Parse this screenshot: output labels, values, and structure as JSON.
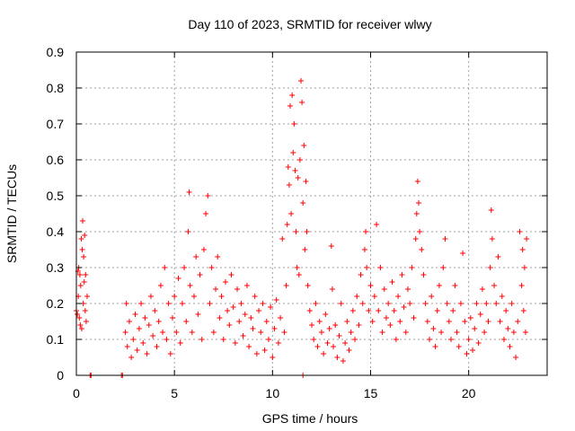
{
  "chart_data": {
    "type": "scatter",
    "title": "Day 110 of 2023, SRMTID for receiver wlwy",
    "xlabel": "GPS time / hours",
    "ylabel": "SRMTID / TECUs",
    "xlim": [
      0,
      24
    ],
    "ylim": [
      0,
      0.9
    ],
    "xticks": [
      0,
      5,
      10,
      15,
      20
    ],
    "yticks": [
      0,
      0.1,
      0.2,
      0.3,
      0.4,
      0.5,
      0.6,
      0.7,
      0.8,
      0.9
    ],
    "grid": true,
    "marker": "+",
    "colors": {
      "series": "#ff0000",
      "grid": "#a0a0a0",
      "axis": "#000000"
    },
    "series": [
      {
        "name": "SRMTID",
        "points": [
          [
            0.0,
            0.18
          ],
          [
            0.05,
            0.17
          ],
          [
            0.08,
            0.29
          ],
          [
            0.1,
            0.22
          ],
          [
            0.12,
            0.3
          ],
          [
            0.15,
            0.16
          ],
          [
            0.18,
            0.28
          ],
          [
            0.2,
            0.14
          ],
          [
            0.22,
            0.25
          ],
          [
            0.25,
            0.38
          ],
          [
            0.27,
            0.13
          ],
          [
            0.3,
            0.35
          ],
          [
            0.32,
            0.43
          ],
          [
            0.35,
            0.2
          ],
          [
            0.37,
            0.33
          ],
          [
            0.4,
            0.26
          ],
          [
            0.42,
            0.39
          ],
          [
            0.45,
            0.18
          ],
          [
            0.47,
            0.28
          ],
          [
            0.5,
            0.15
          ],
          [
            0.55,
            0.22
          ],
          [
            0.7,
            0.0
          ],
          [
            0.75,
            0.0
          ],
          [
            2.3,
            0.0
          ],
          [
            2.35,
            0.0
          ],
          [
            11.55,
            0.0
          ],
          [
            2.5,
            0.12
          ],
          [
            2.55,
            0.2
          ],
          [
            2.6,
            0.08
          ],
          [
            2.7,
            0.15
          ],
          [
            2.8,
            0.05
          ],
          [
            2.9,
            0.1
          ],
          [
            3.0,
            0.17
          ],
          [
            3.1,
            0.07
          ],
          [
            3.2,
            0.13
          ],
          [
            3.3,
            0.2
          ],
          [
            3.4,
            0.09
          ],
          [
            3.5,
            0.16
          ],
          [
            3.6,
            0.06
          ],
          [
            3.7,
            0.14
          ],
          [
            3.8,
            0.22
          ],
          [
            3.9,
            0.11
          ],
          [
            4.0,
            0.18
          ],
          [
            4.1,
            0.08
          ],
          [
            4.2,
            0.15
          ],
          [
            4.3,
            0.25
          ],
          [
            4.4,
            0.12
          ],
          [
            4.5,
            0.3
          ],
          [
            4.6,
            0.1
          ],
          [
            4.7,
            0.2
          ],
          [
            4.8,
            0.06
          ],
          [
            4.9,
            0.16
          ],
          [
            5.0,
            0.22
          ],
          [
            5.1,
            0.12
          ],
          [
            5.2,
            0.27
          ],
          [
            5.3,
            0.09
          ],
          [
            5.4,
            0.2
          ],
          [
            5.5,
            0.3
          ],
          [
            5.6,
            0.15
          ],
          [
            5.7,
            0.4
          ],
          [
            5.75,
            0.51
          ],
          [
            5.8,
            0.25
          ],
          [
            5.9,
            0.12
          ],
          [
            6.0,
            0.22
          ],
          [
            6.1,
            0.33
          ],
          [
            6.2,
            0.17
          ],
          [
            6.3,
            0.28
          ],
          [
            6.4,
            0.1
          ],
          [
            6.5,
            0.35
          ],
          [
            6.6,
            0.45
          ],
          [
            6.7,
            0.5
          ],
          [
            6.8,
            0.2
          ],
          [
            6.9,
            0.3
          ],
          [
            7.0,
            0.12
          ],
          [
            7.1,
            0.24
          ],
          [
            7.2,
            0.33
          ],
          [
            7.3,
            0.16
          ],
          [
            7.4,
            0.22
          ],
          [
            7.5,
            0.1
          ],
          [
            7.6,
            0.26
          ],
          [
            7.7,
            0.18
          ],
          [
            7.8,
            0.14
          ],
          [
            7.9,
            0.28
          ],
          [
            8.0,
            0.19
          ],
          [
            8.1,
            0.09
          ],
          [
            8.2,
            0.24
          ],
          [
            8.3,
            0.15
          ],
          [
            8.4,
            0.2
          ],
          [
            8.5,
            0.11
          ],
          [
            8.6,
            0.17
          ],
          [
            8.7,
            0.25
          ],
          [
            8.8,
            0.08
          ],
          [
            8.9,
            0.16
          ],
          [
            9.0,
            0.13
          ],
          [
            9.1,
            0.22
          ],
          [
            9.2,
            0.06
          ],
          [
            9.3,
            0.18
          ],
          [
            9.4,
            0.12
          ],
          [
            9.5,
            0.2
          ],
          [
            9.6,
            0.07
          ],
          [
            9.7,
            0.15
          ],
          [
            9.8,
            0.1
          ],
          [
            9.9,
            0.19
          ],
          [
            10.0,
            0.05
          ],
          [
            10.1,
            0.13
          ],
          [
            10.2,
            0.21
          ],
          [
            10.3,
            0.09
          ],
          [
            10.4,
            0.16
          ],
          [
            10.5,
            0.38
          ],
          [
            10.6,
            0.12
          ],
          [
            10.7,
            0.25
          ],
          [
            10.75,
            0.42
          ],
          [
            10.8,
            0.58
          ],
          [
            10.85,
            0.53
          ],
          [
            10.9,
            0.75
          ],
          [
            10.95,
            0.45
          ],
          [
            11.0,
            0.78
          ],
          [
            11.05,
            0.62
          ],
          [
            11.1,
            0.7
          ],
          [
            11.15,
            0.57
          ],
          [
            11.2,
            0.4
          ],
          [
            11.25,
            0.3
          ],
          [
            11.3,
            0.55
          ],
          [
            11.35,
            0.28
          ],
          [
            11.4,
            0.6
          ],
          [
            11.45,
            0.82
          ],
          [
            11.5,
            0.76
          ],
          [
            11.55,
            0.48
          ],
          [
            11.6,
            0.64
          ],
          [
            11.65,
            0.35
          ],
          [
            11.7,
            0.54
          ],
          [
            11.75,
            0.4
          ],
          [
            11.8,
            0.25
          ],
          [
            11.9,
            0.18
          ],
          [
            12.0,
            0.14
          ],
          [
            12.1,
            0.1
          ],
          [
            12.2,
            0.2
          ],
          [
            12.3,
            0.08
          ],
          [
            12.4,
            0.15
          ],
          [
            12.5,
            0.12
          ],
          [
            12.6,
            0.06
          ],
          [
            12.7,
            0.17
          ],
          [
            12.8,
            0.09
          ],
          [
            12.9,
            0.13
          ],
          [
            13.0,
            0.36
          ],
          [
            13.05,
            0.24
          ],
          [
            13.1,
            0.08
          ],
          [
            13.2,
            0.14
          ],
          [
            13.3,
            0.05
          ],
          [
            13.4,
            0.11
          ],
          [
            13.5,
            0.2
          ],
          [
            13.6,
            0.04
          ],
          [
            13.7,
            0.09
          ],
          [
            13.8,
            0.15
          ],
          [
            13.9,
            0.07
          ],
          [
            14.0,
            0.12
          ],
          [
            14.1,
            0.18
          ],
          [
            14.2,
            0.1
          ],
          [
            14.3,
            0.22
          ],
          [
            14.4,
            0.14
          ],
          [
            14.5,
            0.28
          ],
          [
            14.6,
            0.2
          ],
          [
            14.7,
            0.35
          ],
          [
            14.75,
            0.4
          ],
          [
            14.8,
            0.3
          ],
          [
            14.9,
            0.18
          ],
          [
            15.0,
            0.25
          ],
          [
            15.1,
            0.15
          ],
          [
            15.2,
            0.22
          ],
          [
            15.3,
            0.42
          ],
          [
            15.4,
            0.18
          ],
          [
            15.5,
            0.3
          ],
          [
            15.6,
            0.12
          ],
          [
            15.7,
            0.24
          ],
          [
            15.8,
            0.16
          ],
          [
            15.9,
            0.2
          ],
          [
            16.0,
            0.14
          ],
          [
            16.1,
            0.26
          ],
          [
            16.2,
            0.18
          ],
          [
            16.3,
            0.1
          ],
          [
            16.4,
            0.22
          ],
          [
            16.5,
            0.15
          ],
          [
            16.6,
            0.28
          ],
          [
            16.7,
            0.19
          ],
          [
            16.8,
            0.12
          ],
          [
            16.9,
            0.24
          ],
          [
            17.0,
            0.2
          ],
          [
            17.1,
            0.3
          ],
          [
            17.2,
            0.16
          ],
          [
            17.3,
            0.38
          ],
          [
            17.35,
            0.45
          ],
          [
            17.4,
            0.54
          ],
          [
            17.45,
            0.48
          ],
          [
            17.5,
            0.4
          ],
          [
            17.6,
            0.35
          ],
          [
            17.7,
            0.28
          ],
          [
            17.8,
            0.2
          ],
          [
            17.9,
            0.15
          ],
          [
            18.0,
            0.1
          ],
          [
            18.1,
            0.22
          ],
          [
            18.2,
            0.13
          ],
          [
            18.3,
            0.08
          ],
          [
            18.4,
            0.18
          ],
          [
            18.5,
            0.25
          ],
          [
            18.6,
            0.12
          ],
          [
            18.7,
            0.3
          ],
          [
            18.8,
            0.38
          ],
          [
            18.9,
            0.2
          ],
          [
            19.0,
            0.15
          ],
          [
            19.1,
            0.1
          ],
          [
            19.2,
            0.18
          ],
          [
            19.3,
            0.25
          ],
          [
            19.4,
            0.12
          ],
          [
            19.5,
            0.08
          ],
          [
            19.6,
            0.2
          ],
          [
            19.7,
            0.34
          ],
          [
            19.8,
            0.15
          ],
          [
            19.9,
            0.06
          ],
          [
            20.0,
            0.1
          ],
          [
            20.1,
            0.16
          ],
          [
            20.2,
            0.07
          ],
          [
            20.3,
            0.13
          ],
          [
            20.4,
            0.2
          ],
          [
            20.5,
            0.09
          ],
          [
            20.6,
            0.17
          ],
          [
            20.7,
            0.24
          ],
          [
            20.8,
            0.12
          ],
          [
            20.9,
            0.2
          ],
          [
            21.0,
            0.15
          ],
          [
            21.1,
            0.3
          ],
          [
            21.15,
            0.46
          ],
          [
            21.2,
            0.38
          ],
          [
            21.3,
            0.25
          ],
          [
            21.4,
            0.2
          ],
          [
            21.5,
            0.33
          ],
          [
            21.6,
            0.15
          ],
          [
            21.7,
            0.22
          ],
          [
            21.8,
            0.1
          ],
          [
            21.9,
            0.18
          ],
          [
            22.0,
            0.13
          ],
          [
            22.1,
            0.08
          ],
          [
            22.2,
            0.2
          ],
          [
            22.3,
            0.12
          ],
          [
            22.4,
            0.05
          ],
          [
            22.5,
            0.15
          ],
          [
            22.6,
            0.4
          ],
          [
            22.7,
            0.25
          ],
          [
            22.75,
            0.35
          ],
          [
            22.8,
            0.18
          ],
          [
            22.85,
            0.3
          ],
          [
            22.9,
            0.12
          ],
          [
            22.95,
            0.38
          ]
        ]
      }
    ]
  }
}
